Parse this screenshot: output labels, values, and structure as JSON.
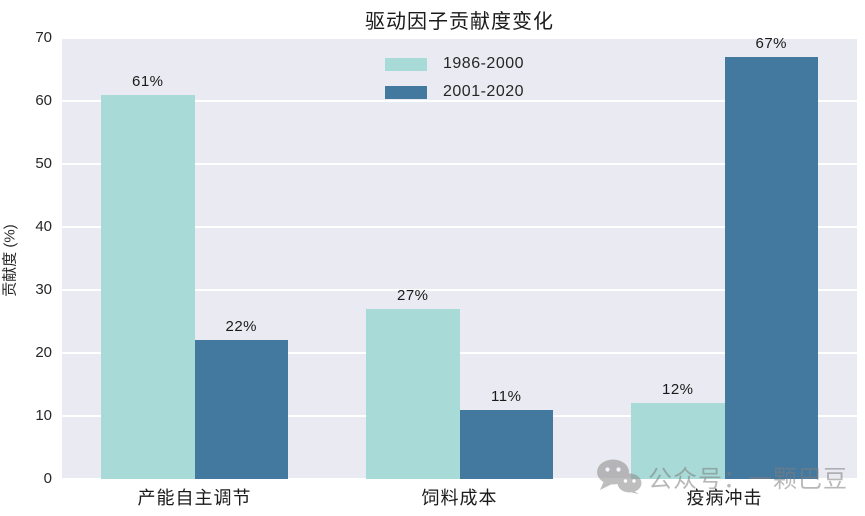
{
  "watermark": {
    "text": "公众号：一颗巴豆",
    "icon": "wechat-icon"
  },
  "chart_data": {
    "type": "bar",
    "title": "驱动因子贡献度变化",
    "ylabel": "贡献度 (%)",
    "xlabel": "",
    "categories": [
      "产能自主调节",
      "饲料成本",
      "疫病冲击"
    ],
    "series": [
      {
        "name": "1986-2000",
        "color": "#a8dad8",
        "values": [
          61,
          27,
          12
        ]
      },
      {
        "name": "2001-2020",
        "color": "#44799f",
        "values": [
          22,
          11,
          67
        ]
      }
    ],
    "value_label_suffix": "%",
    "ylim": [
      0,
      70
    ],
    "yticks": [
      0,
      10,
      20,
      30,
      40,
      50,
      60,
      70
    ],
    "grid": true,
    "legend_position": "upper-center",
    "plot_bg_color": "#eaeaf2",
    "grid_color": "#ffffff",
    "text_color": "#262626"
  }
}
